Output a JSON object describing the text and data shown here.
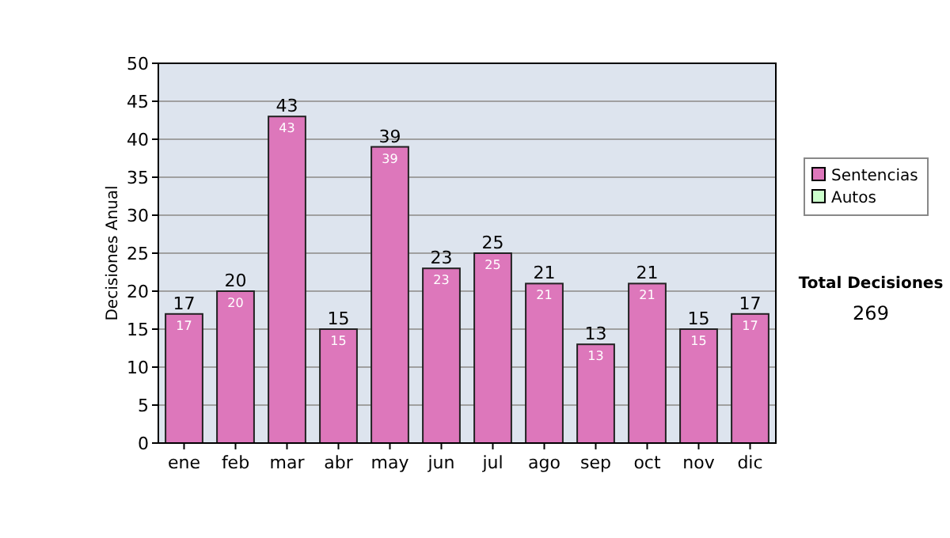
{
  "chart_data": {
    "type": "bar",
    "ylabel": "Decisiones Anual",
    "categories": [
      "ene",
      "feb",
      "mar",
      "abr",
      "may",
      "jun",
      "jul",
      "ago",
      "sep",
      "oct",
      "nov",
      "dic"
    ],
    "series": [
      {
        "name": "Sentencias",
        "color": "#dd77bb",
        "values": [
          17,
          20,
          43,
          15,
          39,
          23,
          25,
          21,
          13,
          21,
          15,
          17
        ]
      },
      {
        "name": "Autos",
        "color": "#ccffcc",
        "values": [
          null,
          null,
          null,
          null,
          null,
          null,
          null,
          null,
          null,
          null,
          null,
          null
        ]
      }
    ],
    "stacked": true,
    "totals": [
      "17",
      "20",
      "43",
      "15",
      "39",
      "23",
      "25",
      "21",
      "13",
      "21",
      "15",
      "17"
    ],
    "ylim": [
      0,
      50
    ],
    "yticks": [
      0,
      5,
      10,
      15,
      20,
      25,
      30,
      35,
      40,
      45,
      50
    ],
    "grid": "y",
    "legend": "right",
    "data_labels": true,
    "annotations": [
      "Total Decisiones",
      "269"
    ]
  }
}
